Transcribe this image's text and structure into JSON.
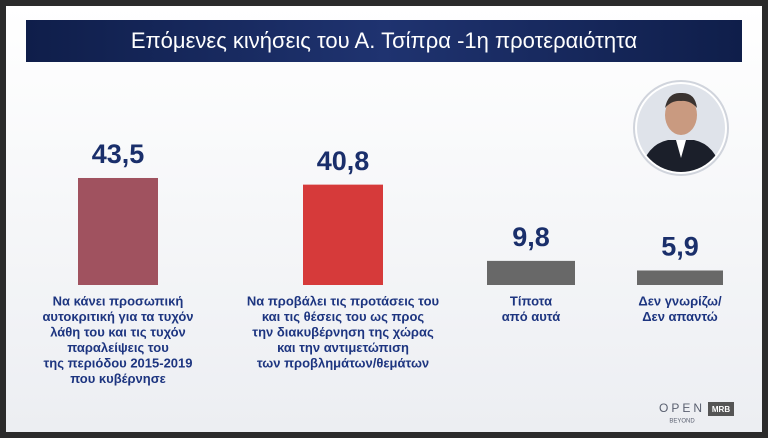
{
  "chart_data": {
    "type": "bar",
    "title": "Επόμενες κινήσεις του Α. Τσίπρα -1η προτεραιότητα",
    "categories": [
      [
        "Να κάνει προσωπική",
        "αυτοκριτική για τα τυχόν",
        "λάθη του και τις τυχόν",
        "παραλείψεις του",
        "της περιόδου 2015-2019",
        "που κυβέρνησε"
      ],
      [
        "Να προβάλει τις προτάσεις του",
        "και τις θέσεις του ως προς",
        "την διακυβέρνηση της χώρας",
        "και την αντιμετώπιση",
        "των προβλημάτων/θεμάτων"
      ],
      [
        "Τίποτα",
        "από αυτά"
      ],
      [
        "Δεν γνωρίζω/",
        "Δεν απαντώ"
      ]
    ],
    "values": [
      43.5,
      40.8,
      9.8,
      5.9
    ],
    "value_labels": [
      "43,5",
      "40,8",
      "9,8",
      "5,9"
    ],
    "colors": [
      "#a0525f",
      "#d63a3a",
      "#686868",
      "#686868"
    ]
  },
  "logos": {
    "channel": "OPEN",
    "tagline": "BEYOND",
    "pollster": "MRB"
  }
}
